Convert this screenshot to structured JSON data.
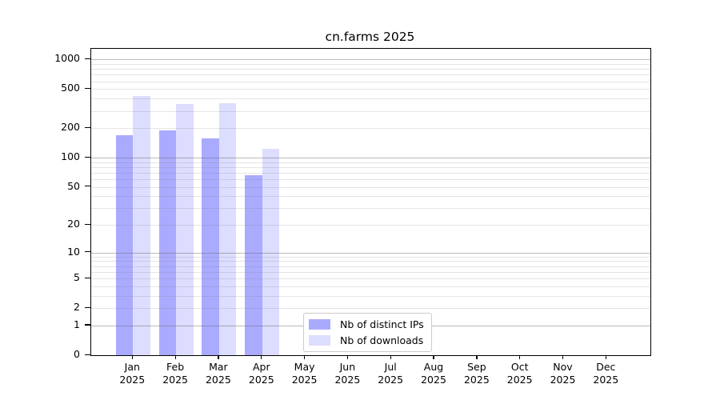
{
  "figure": {
    "title": "cn.farms 2025",
    "background_color": "#ffffff"
  },
  "chart_data": {
    "type": "bar",
    "title": "cn.farms 2025",
    "x_categories": [
      "Jan",
      "Feb",
      "Mar",
      "Apr",
      "May",
      "Jun",
      "Jul",
      "Aug",
      "Sep",
      "Oct",
      "Nov",
      "Dec"
    ],
    "x_year_label": "2025",
    "y_scale": "log1p",
    "y_ticks": [
      0,
      1,
      2,
      5,
      10,
      20,
      50,
      100,
      200,
      500,
      1000
    ],
    "y_axis_max": 1280,
    "grid": {
      "major_values": [
        1,
        10,
        100,
        1000
      ],
      "minor_color": "#ececec",
      "major_color": "#bcbcbc",
      "grid_above_bars": true
    },
    "series": [
      {
        "name": "Nb of distinct IPs",
        "key": "distinct-ips",
        "color": "#aaaaff",
        "values": [
          170,
          188,
          158,
          66,
          null,
          null,
          null,
          null,
          null,
          null,
          null,
          null
        ]
      },
      {
        "name": "Nb of downloads",
        "key": "downloads",
        "color": "#ddddff",
        "values": [
          424,
          350,
          357,
          124,
          null,
          null,
          null,
          null,
          null,
          null,
          null,
          null
        ]
      }
    ],
    "legend": {
      "position": "inside-bottom-center",
      "entries": [
        "Nb of distinct IPs",
        "Nb of downloads"
      ]
    }
  }
}
